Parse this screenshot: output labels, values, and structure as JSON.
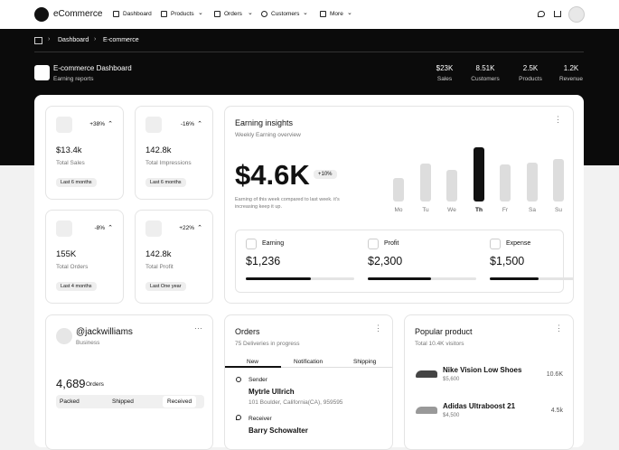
{
  "nav": {
    "brand": "eCommerce",
    "items": [
      "Dashboard",
      "Products",
      "Orders",
      "Customers",
      "More"
    ]
  },
  "breadcrumb": [
    "Dashboard",
    "E-commerce"
  ],
  "header": {
    "title": "E-commerce Dashboard",
    "subtitle": "Earning reports",
    "stats": [
      {
        "value": "$23K",
        "label": "Sales"
      },
      {
        "value": "8.51K",
        "label": "Customers"
      },
      {
        "value": "2.5K",
        "label": "Products"
      },
      {
        "value": "1.2K",
        "label": "Revenue"
      }
    ]
  },
  "stat_cards": [
    {
      "change": "+38%",
      "value": "$13.4k",
      "label": "Total Sales",
      "period": "Last 6 months"
    },
    {
      "change": "-16%",
      "value": "142.8k",
      "label": "Total Impressions",
      "period": "Last 6 months"
    },
    {
      "change": "-8%",
      "value": "155K",
      "label": "Total Orders",
      "period": "Last 4 months"
    },
    {
      "change": "+22%",
      "value": "142.8k",
      "label": "Total Profit",
      "period": "Last One year"
    }
  ],
  "earning_insights": {
    "title": "Earning insights",
    "subtitle": "Weekly Earning overview",
    "amount": "$4.6K",
    "change": "+10%",
    "note": "Earning of this week compared to last week. it's increasing keep it up.",
    "days": [
      "Mo",
      "Tu",
      "We",
      "Th",
      "Fr",
      "Sa",
      "Su"
    ],
    "bar_values": [
      26,
      42,
      35,
      60,
      41,
      43,
      47
    ],
    "highlight_day": "Th",
    "metrics": [
      {
        "label": "Earning",
        "value": "$1,236",
        "progress": 60
      },
      {
        "label": "Profit",
        "value": "$2,300",
        "progress": 58
      },
      {
        "label": "Expense",
        "value": "$1,500",
        "progress": 45
      }
    ]
  },
  "profile": {
    "handle": "@jackwilliams",
    "role": "Business",
    "orders": "4,689",
    "orders_label": "Orders",
    "tabs": [
      "Packed",
      "Shipped",
      "Received"
    ]
  },
  "orders": {
    "title": "Orders",
    "subtitle": "75 Deliveries in progress",
    "tabs": [
      "New",
      "Notification",
      "Shipping"
    ],
    "sender": {
      "label": "Sender",
      "name": "Mytrle Ullrich",
      "address": "101 Boulder, California(CA), 959595"
    },
    "receiver": {
      "label": "Receiver",
      "name": "Barry Schowalter"
    }
  },
  "popular": {
    "title": "Popular product",
    "subtitle": "Total 10.4K visitors",
    "products": [
      {
        "name": "Nike Vision Low Shoes",
        "price": "$5,600",
        "count": "10.6K"
      },
      {
        "name": "Adidas Ultraboost 21",
        "price": "$4,500",
        "count": "4.5k"
      }
    ]
  }
}
